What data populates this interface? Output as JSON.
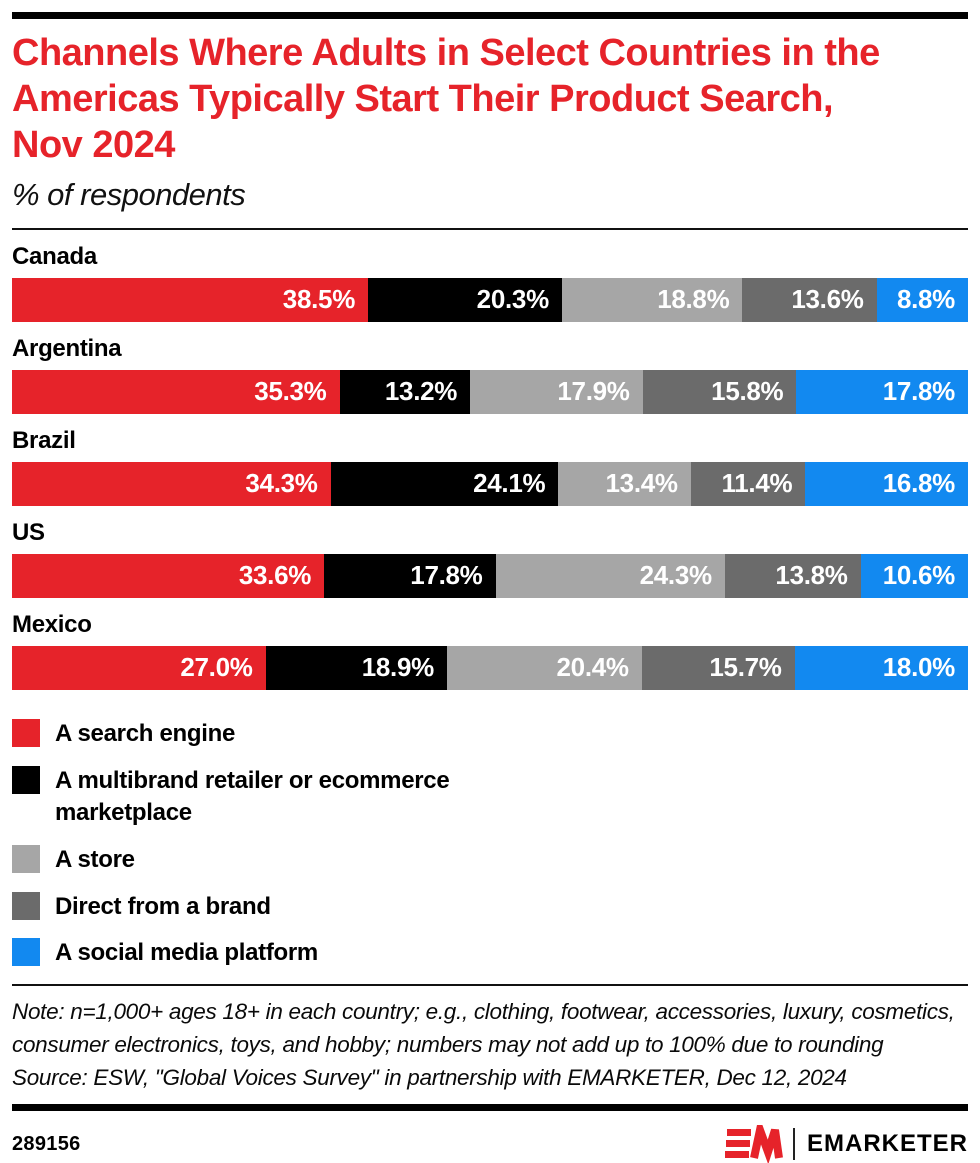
{
  "header": {
    "title": "Channels Where Adults in Select Countries in the Americas Typically Start Their Product Search, Nov 2024",
    "title_lines": [
      "Channels Where Adults in Select Countries in the",
      "Americas Typically Start Their Product Search,",
      "Nov 2024"
    ],
    "subtitle": "% of respondents",
    "title_color": "#E6232A"
  },
  "chart_data": {
    "type": "bar",
    "variant": "horizontal-stacked",
    "stacked": true,
    "value_suffix": "%",
    "axis_range": [
      0,
      100
    ],
    "grid": false,
    "legend_position": "bottom-left",
    "categories": [
      "Canada",
      "Argentina",
      "Brazil",
      "US",
      "Mexico"
    ],
    "series": [
      {
        "name": "A search engine",
        "color": "#E6232A",
        "values": [
          38.5,
          35.3,
          34.3,
          33.6,
          27.0
        ]
      },
      {
        "name": "A multibrand retailer or ecommerce marketplace",
        "color": "#000000",
        "values": [
          20.3,
          13.2,
          24.1,
          17.8,
          18.9
        ]
      },
      {
        "name": "A store",
        "color": "#A6A6A6",
        "values": [
          18.8,
          17.9,
          13.4,
          24.3,
          20.4
        ]
      },
      {
        "name": "Direct from a brand",
        "color": "#6B6B6B",
        "values": [
          13.6,
          15.8,
          11.4,
          13.8,
          15.7
        ]
      },
      {
        "name": "A social media platform",
        "color": "#1289F0",
        "values": [
          8.8,
          17.8,
          16.8,
          10.6,
          18.0
        ]
      }
    ],
    "title": "Channels Where Adults in Select Countries in the Americas Typically Start Their Product Search, Nov 2024",
    "subtitle": "% of respondents"
  },
  "footnote": {
    "note": "Note: n=1,000+ ages 18+ in each country; e.g., clothing, footwear, accessories, luxury, cosmetics, consumer electronics, toys, and hobby; numbers may not add up to 100% due to rounding",
    "source": "Source: ESW, \"Global Voices Survey\" in partnership with EMARKETER, Dec 12, 2024"
  },
  "footer": {
    "chart_id": "289156",
    "brand_name": "EMARKETER",
    "logo_color": "#E6232A"
  }
}
